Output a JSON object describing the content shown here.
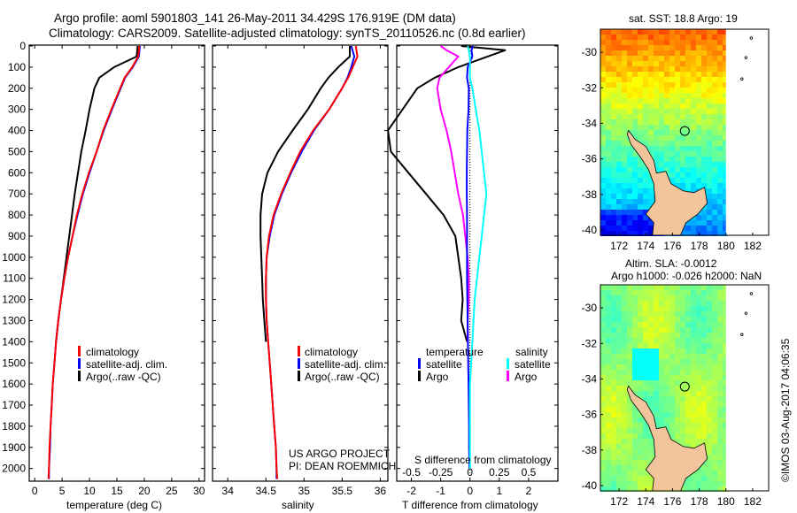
{
  "title": {
    "line1": "Argo profile: aoml 5901803_141 26-May-2011 34.429S 176.919E (DM data)",
    "line2": "Climatology: CARS2009. Satellite-adjusted climatology: synTS_20110526.nc (0.8d earlier)"
  },
  "colors": {
    "climatology": "#ff0000",
    "satellite": "#0000ff",
    "argo": "#000000",
    "satellite_salinity": "#00ffff",
    "argo_salinity": "#ff00ff",
    "land": "#f2c49c"
  },
  "depth_axis": {
    "range": [
      0,
      2060
    ],
    "ticks": [
      0,
      100,
      200,
      300,
      400,
      500,
      600,
      700,
      800,
      900,
      1000,
      1100,
      1200,
      1300,
      1400,
      1500,
      1600,
      1700,
      1800,
      1900,
      2000
    ]
  },
  "legend_labels": {
    "climatology": "climatology",
    "satellite": "satellite-adj. clim.",
    "argo": "Argo(..raw -QC)"
  },
  "diff_legend": {
    "temperature_header": "temperature",
    "salinity_header": "salinity",
    "satellite": "satellite",
    "argo": "Argo"
  },
  "credit": {
    "line1": "US ARGO PROJECT",
    "line2": "PI: DEAN ROEMMICH"
  },
  "map_sst": {
    "title": "sat. SST: 18.8 Argo: 19",
    "colorscale": "jet",
    "float_lon": 176.919,
    "float_lat": -34.429,
    "xticks": [
      "172",
      "174",
      "176",
      "178",
      "180",
      "182"
    ],
    "yticks": [
      "-30",
      "-32",
      "-34",
      "-36",
      "-38",
      "-40"
    ]
  },
  "map_sla": {
    "title_line1": "Altim. SLA: -0.0012",
    "title_line2": "Argo h1000: -0.026 h2000: NaN",
    "colorscale": "jet",
    "float_lon": 176.919,
    "float_lat": -34.429,
    "xticks": [
      "172",
      "174",
      "176",
      "178",
      "180",
      "182"
    ],
    "yticks": [
      "-30",
      "-32",
      "-34",
      "-36",
      "-38",
      "-40"
    ]
  },
  "timestamp": "©IMOS 03-Aug-2017 04:06:35",
  "chart_data": [
    {
      "type": "line",
      "xlabel": "temperature (deg C)",
      "ylabel": "",
      "xlim": [
        -1,
        31
      ],
      "ylim": [
        2060,
        0
      ],
      "xticks": [
        "0",
        "5",
        "10",
        "15",
        "20",
        "25",
        "30"
      ],
      "depth": [
        0,
        50,
        100,
        150,
        200,
        300,
        400,
        500,
        600,
        700,
        800,
        900,
        1000,
        1100,
        1200,
        1300,
        1400,
        1500,
        1600,
        1700,
        1800,
        1900,
        2000,
        2050
      ],
      "series": [
        {
          "name": "climatology",
          "values": [
            19.1,
            18.9,
            17.8,
            16.4,
            15.6,
            14.0,
            12.5,
            11.3,
            9.9,
            8.7,
            7.7,
            6.9,
            6.1,
            5.4,
            4.8,
            4.3,
            3.9,
            3.6,
            3.3,
            3.1,
            2.9,
            2.7,
            2.6,
            2.5
          ]
        },
        {
          "name": "satellite-adj. clim.",
          "values": [
            19.2,
            19.0,
            17.9,
            16.5,
            15.7,
            14.1,
            12.6,
            11.3,
            10.0,
            8.8,
            7.8,
            6.9,
            6.1,
            5.4,
            4.8,
            4.3,
            3.9,
            3.6,
            3.3,
            3.1,
            2.9,
            2.8,
            2.6,
            2.6
          ]
        },
        {
          "name": "Argo(..raw -QC)",
          "values": [
            18.8,
            18.6,
            14.5,
            11.8,
            10.9,
            10.0,
            9.3,
            8.5,
            7.9,
            7.3,
            6.8,
            6.3,
            5.8,
            5.3,
            4.8,
            4.3,
            3.9
          ]
        }
      ]
    },
    {
      "type": "line",
      "xlabel": "salinity",
      "ylabel": "",
      "xlim": [
        33.8,
        36.1
      ],
      "ylim": [
        2060,
        0
      ],
      "xticks": [
        "34",
        "34.5",
        "35",
        "35.5",
        "36"
      ],
      "depth": [
        0,
        50,
        100,
        150,
        200,
        300,
        400,
        500,
        600,
        700,
        800,
        900,
        1000,
        1100,
        1200,
        1300,
        1400,
        1500,
        1600,
        1700,
        1800,
        1900,
        2000,
        2050
      ],
      "series": [
        {
          "name": "climatology",
          "values": [
            35.68,
            35.7,
            35.64,
            35.58,
            35.5,
            35.33,
            35.12,
            34.95,
            34.82,
            34.7,
            34.6,
            34.54,
            34.51,
            34.5,
            34.5,
            34.51,
            34.53,
            34.55,
            34.57,
            34.59,
            34.61,
            34.63,
            34.64,
            34.65
          ]
        },
        {
          "name": "satellite-adj. clim.",
          "values": [
            35.62,
            35.66,
            35.62,
            35.57,
            35.5,
            35.33,
            35.13,
            34.97,
            34.83,
            34.71,
            34.61,
            34.55,
            34.51,
            34.5,
            34.5,
            34.51,
            34.53,
            34.55,
            34.57,
            34.59,
            34.61,
            34.63,
            34.64,
            34.64
          ]
        },
        {
          "name": "Argo(..raw -QC)",
          "values": [
            35.6,
            35.6,
            35.45,
            35.32,
            35.22,
            35.05,
            34.85,
            34.66,
            34.52,
            34.45,
            34.43,
            34.43,
            34.44,
            34.45,
            34.46,
            34.48,
            34.5
          ]
        }
      ]
    },
    {
      "type": "line",
      "xlabel": "T difference from climatology",
      "title": "S difference from climatology",
      "xlim": [
        -2.5,
        3
      ],
      "ylim": [
        2060,
        0
      ],
      "xticks": [
        "-2",
        "-1",
        "0",
        "1",
        "2"
      ],
      "top_xticks": [
        "-0.5",
        "-0.25",
        "0",
        "0.25",
        "0.5"
      ],
      "depth": [
        0,
        20,
        50,
        100,
        150,
        200,
        300,
        400,
        500,
        600,
        700,
        800,
        900,
        1000,
        1100,
        1200,
        1300,
        1400,
        1500,
        1600,
        1700,
        1800,
        1900,
        2000
      ],
      "series": [
        {
          "name": "temperature satellite",
          "values": [
            0.1,
            0.05,
            0.08,
            -0.08,
            -0.1,
            -0.04,
            -0.05,
            -0.09,
            -0.1,
            -0.11,
            -0.11,
            -0.1,
            -0.1,
            -0.1,
            -0.1,
            -0.09,
            -0.08,
            -0.07,
            -0.06,
            -0.05,
            -0.04,
            -0.03,
            -0.03,
            -0.02
          ]
        },
        {
          "name": "temperature Argo",
          "values": [
            -0.3,
            1.2,
            0.6,
            -0.4,
            -1.2,
            -1.8,
            -2.3,
            -2.8,
            -2.7,
            -2.1,
            -1.5,
            -0.9,
            -0.5,
            -0.4,
            -0.3,
            -0.25,
            -0.3,
            -0.1
          ]
        },
        {
          "name": "salinity satellite",
          "values": [
            -0.02,
            -0.01,
            0.0,
            0.0,
            0.0,
            0.02,
            0.05,
            0.08,
            0.1,
            0.12,
            0.14,
            0.12,
            0.1,
            0.08,
            0.06,
            0.04,
            0.03,
            0.02,
            0.01,
            0.0,
            0.0,
            0.0,
            0.0,
            0.0
          ]
        },
        {
          "name": "salinity Argo",
          "values": [
            -0.25,
            -0.2,
            -0.1,
            -0.18,
            -0.26,
            -0.28,
            -0.25,
            -0.2,
            -0.16,
            -0.13,
            -0.1,
            -0.06,
            -0.04,
            -0.02,
            -0.01,
            -0.01,
            -0.02,
            -0.02
          ]
        }
      ]
    }
  ]
}
